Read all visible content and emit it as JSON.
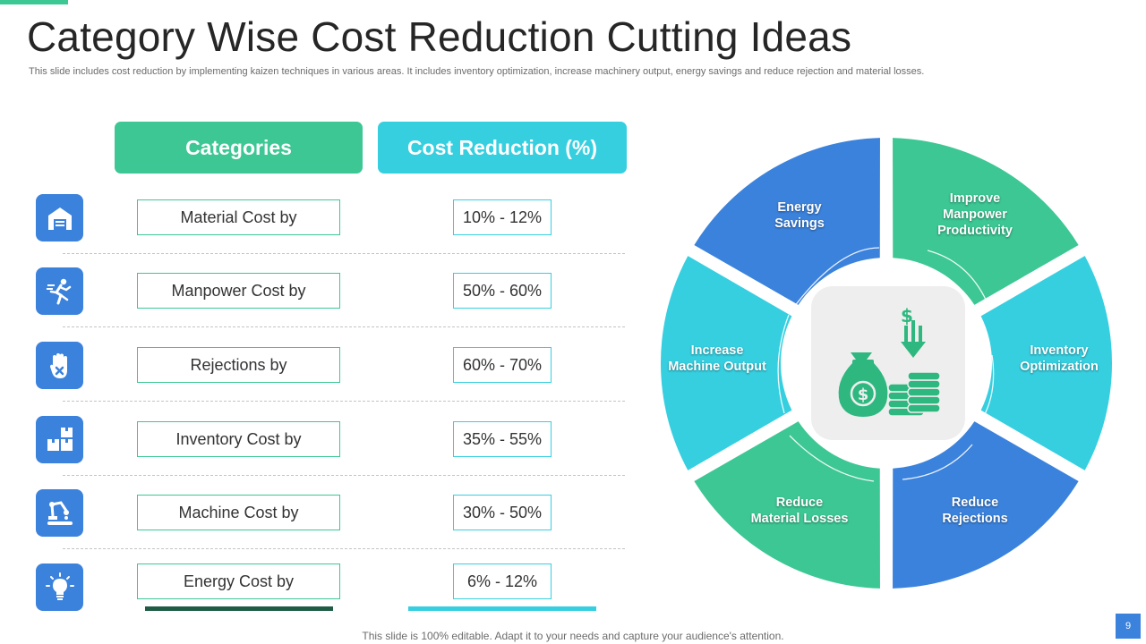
{
  "slide": {
    "title": "Category Wise Cost Reduction Cutting Ideas",
    "subtitle": "This slide includes cost reduction by implementing kaizen techniques in various areas. It includes inventory optimization, increase machinery output, energy savings and  reduce rejection and material losses.",
    "footer": "This slide is 100% editable. Adapt it to your needs and capture your audience's attention.",
    "page_number": "9"
  },
  "table": {
    "header_categories": "Categories",
    "header_reduction": "Cost Reduction (%)",
    "rows": [
      {
        "icon": "warehouse-icon",
        "category": "Material Cost by",
        "reduction": "10% - 12%"
      },
      {
        "icon": "running-person-icon",
        "category": "Manpower Cost by",
        "reduction": "50% - 60%"
      },
      {
        "icon": "hand-stop-icon",
        "category": "Rejections by",
        "reduction": "60% - 70%"
      },
      {
        "icon": "boxes-icon",
        "category": "Inventory Cost by",
        "reduction": "35% - 55%"
      },
      {
        "icon": "robot-arm-icon",
        "category": "Machine Cost by",
        "reduction": "30% - 50%"
      },
      {
        "icon": "light-bulb-icon",
        "category": "Energy Cost by",
        "reduction": "6% - 12%"
      }
    ]
  },
  "cycle": {
    "center_icon": "money-bag-coins-icon",
    "segments": [
      {
        "label": "Improve\nManpower\nProductivity",
        "color": "#3cc794"
      },
      {
        "label": "Inventory\nOptimization",
        "color": "#36cfe0"
      },
      {
        "label": "Reduce\nRejections",
        "color": "#3b82dc"
      },
      {
        "label": "Reduce\nMaterial Losses",
        "color": "#3cc794"
      },
      {
        "label": "Increase\nMachine Output",
        "color": "#36cfe0"
      },
      {
        "label": "Energy\nSavings",
        "color": "#3b82dc"
      }
    ]
  },
  "colors": {
    "green": "#3cc794",
    "cyan": "#36cfe0",
    "blue": "#3b82dc",
    "dark_green": "#1f5c46"
  }
}
